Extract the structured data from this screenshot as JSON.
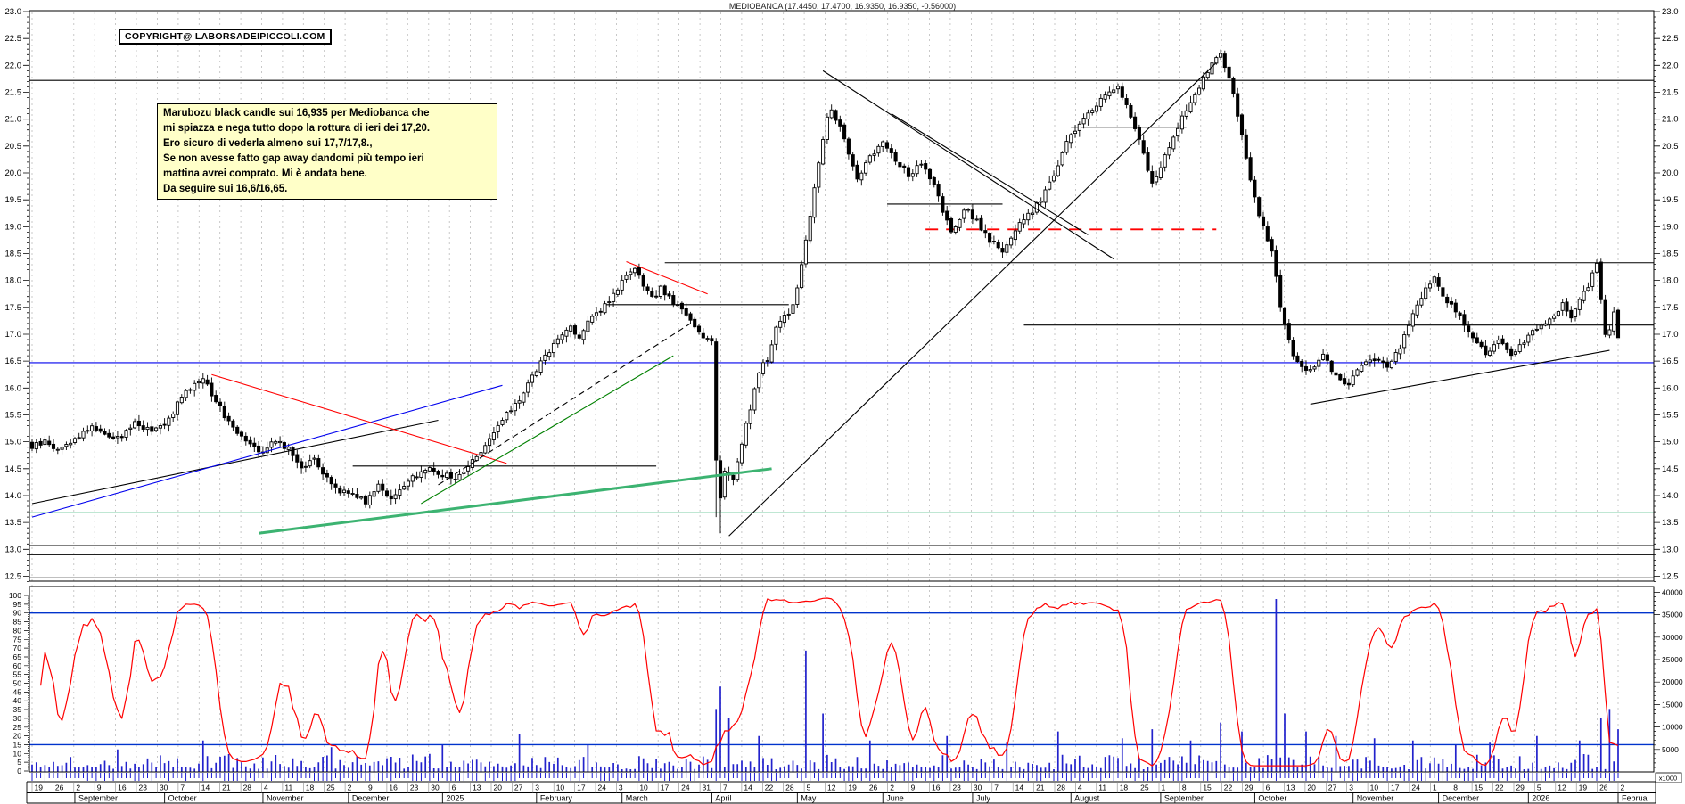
{
  "window": {
    "title": "MEDIOBANCA (17.4450, 17.4700, 16.9350, 16.9350, -0.56000)"
  },
  "copyright_box": {
    "text": "COPYRIGHT@ LABORSADEIPICCOLI.COM"
  },
  "note_box": {
    "text": "Marubozu black candle sui 16,935 per Mediobanca che\nmi spiazza e nega tutto dopo la rottura di ieri dei 17,20.\nEro sicuro di vederla almeno sui 17,7/17,8.,\nSe non avesse fatto gap away dandomi più tempo ieri\nmattina avrei comprato. Mi è andata bene.\nDa seguire sui 16,6/16,65.",
    "background": "#FFFFC8"
  },
  "chart_data": {
    "type": "candlestick",
    "symbol": "MEDIOBANCA",
    "title": "MEDIOBANCA (17.4450, 17.4700, 16.9350, 16.9350, -0.56000)",
    "last_ohlc": {
      "open": 17.445,
      "high": 17.47,
      "low": 16.935,
      "close": 16.935,
      "change": -0.56
    },
    "price_axis": {
      "min_label": 12.5,
      "max_label": 23.0,
      "step": 0.5
    },
    "osc_axis": {
      "min": 0,
      "max": 100,
      "step": 5,
      "thresholds": [
        90,
        15
      ]
    },
    "volume_axis": {
      "labels": [
        40000,
        35000,
        30000,
        25000,
        20000,
        15000,
        10000,
        5000
      ],
      "multiplier_label": "x1000"
    },
    "days_total": 372,
    "week_tick_labels": [
      "19",
      "26",
      "2",
      "9",
      "16",
      "23",
      "30",
      "7",
      "14",
      "21",
      "28",
      "4",
      "11",
      "18",
      "25",
      "2",
      "9",
      "16",
      "23",
      "30",
      "6",
      "13",
      "20",
      "27",
      "3",
      "10",
      "17",
      "24",
      "3",
      "10",
      "17",
      "24",
      "31",
      "7",
      "14",
      "22",
      "28",
      "5",
      "12",
      "19",
      "26",
      "2",
      "9",
      "16",
      "23",
      "30",
      "7",
      "14",
      "21",
      "28",
      "4",
      "11",
      "18",
      "25",
      "1",
      "8",
      "15",
      "22",
      "29",
      "6",
      "13",
      "20",
      "27",
      "3",
      "10",
      "17",
      "24",
      "1",
      "8",
      "15",
      "22",
      "29",
      "5",
      "12",
      "19",
      "26",
      "2"
    ],
    "month_cells": [
      [
        0,
        ""
      ],
      [
        10,
        "September"
      ],
      [
        31,
        "October"
      ],
      [
        54,
        "November"
      ],
      [
        74,
        "December"
      ],
      [
        96,
        "2025"
      ],
      [
        118,
        "February"
      ],
      [
        138,
        "March"
      ],
      [
        159,
        "April"
      ],
      [
        179,
        "May"
      ],
      [
        199,
        "June"
      ],
      [
        220,
        "July"
      ],
      [
        243,
        "August"
      ],
      [
        264,
        "September"
      ],
      [
        286,
        "October"
      ],
      [
        309,
        "November"
      ],
      [
        329,
        "December"
      ],
      [
        350,
        "2026"
      ],
      [
        371,
        "Februa"
      ]
    ],
    "price_anchors": [
      [
        0,
        14.9
      ],
      [
        3,
        15.0
      ],
      [
        6,
        14.85
      ],
      [
        10,
        15.05
      ],
      [
        14,
        15.3
      ],
      [
        17,
        15.15
      ],
      [
        20,
        15.05
      ],
      [
        24,
        15.35
      ],
      [
        28,
        15.2
      ],
      [
        31,
        15.3
      ],
      [
        34,
        15.7
      ],
      [
        38,
        16.1
      ],
      [
        40,
        16.2
      ],
      [
        42,
        15.9
      ],
      [
        45,
        15.5
      ],
      [
        48,
        15.2
      ],
      [
        51,
        15.0
      ],
      [
        54,
        14.8
      ],
      [
        57,
        15.05
      ],
      [
        60,
        14.85
      ],
      [
        63,
        14.55
      ],
      [
        66,
        14.65
      ],
      [
        69,
        14.3
      ],
      [
        72,
        14.1
      ],
      [
        75,
        14.05
      ],
      [
        78,
        13.9
      ],
      [
        81,
        14.2
      ],
      [
        84,
        13.95
      ],
      [
        87,
        14.15
      ],
      [
        90,
        14.4
      ],
      [
        93,
        14.5
      ],
      [
        96,
        14.4
      ],
      [
        99,
        14.3
      ],
      [
        102,
        14.55
      ],
      [
        105,
        14.85
      ],
      [
        108,
        15.15
      ],
      [
        111,
        15.5
      ],
      [
        114,
        15.8
      ],
      [
        117,
        16.2
      ],
      [
        120,
        16.6
      ],
      [
        123,
        16.9
      ],
      [
        126,
        17.15
      ],
      [
        128,
        16.95
      ],
      [
        130,
        17.2
      ],
      [
        133,
        17.45
      ],
      [
        136,
        17.75
      ],
      [
        139,
        18.05
      ],
      [
        141,
        18.2
      ],
      [
        143,
        17.9
      ],
      [
        145,
        17.65
      ],
      [
        147,
        17.85
      ],
      [
        150,
        17.6
      ],
      [
        153,
        17.35
      ],
      [
        155,
        17.15
      ],
      [
        157,
        16.95
      ],
      [
        159,
        16.9
      ],
      [
        160,
        14.7
      ],
      [
        161,
        13.95
      ],
      [
        162,
        14.45
      ],
      [
        164,
        14.3
      ],
      [
        166,
        15.0
      ],
      [
        168,
        15.6
      ],
      [
        170,
        16.3
      ],
      [
        172,
        16.55
      ],
      [
        174,
        17.1
      ],
      [
        176,
        17.35
      ],
      [
        178,
        17.5
      ],
      [
        180,
        18.3
      ],
      [
        182,
        19.2
      ],
      [
        184,
        20.2
      ],
      [
        186,
        21.0
      ],
      [
        187,
        21.2
      ],
      [
        189,
        20.85
      ],
      [
        191,
        20.35
      ],
      [
        193,
        19.9
      ],
      [
        196,
        20.3
      ],
      [
        199,
        20.6
      ],
      [
        202,
        20.25
      ],
      [
        205,
        19.95
      ],
      [
        208,
        20.15
      ],
      [
        211,
        19.75
      ],
      [
        213,
        19.3
      ],
      [
        215,
        18.85
      ],
      [
        218,
        19.35
      ],
      [
        221,
        19.1
      ],
      [
        224,
        18.75
      ],
      [
        227,
        18.55
      ],
      [
        230,
        18.95
      ],
      [
        233,
        19.2
      ],
      [
        236,
        19.5
      ],
      [
        239,
        20.0
      ],
      [
        242,
        20.55
      ],
      [
        245,
        20.9
      ],
      [
        248,
        21.2
      ],
      [
        251,
        21.45
      ],
      [
        254,
        21.6
      ],
      [
        257,
        21.05
      ],
      [
        260,
        20.35
      ],
      [
        262,
        19.8
      ],
      [
        264,
        20.1
      ],
      [
        267,
        20.7
      ],
      [
        270,
        21.2
      ],
      [
        273,
        21.6
      ],
      [
        276,
        22.0
      ],
      [
        278,
        22.25
      ],
      [
        280,
        21.75
      ],
      [
        282,
        21.1
      ],
      [
        284,
        20.25
      ],
      [
        286,
        19.5
      ],
      [
        288,
        19.0
      ],
      [
        290,
        18.55
      ],
      [
        292,
        17.55
      ],
      [
        294,
        16.85
      ],
      [
        296,
        16.45
      ],
      [
        299,
        16.3
      ],
      [
        302,
        16.6
      ],
      [
        305,
        16.2
      ],
      [
        308,
        16.05
      ],
      [
        311,
        16.45
      ],
      [
        314,
        16.55
      ],
      [
        317,
        16.4
      ],
      [
        320,
        16.75
      ],
      [
        323,
        17.35
      ],
      [
        326,
        17.85
      ],
      [
        328,
        18.05
      ],
      [
        331,
        17.6
      ],
      [
        334,
        17.35
      ],
      [
        337,
        16.95
      ],
      [
        340,
        16.65
      ],
      [
        343,
        16.9
      ],
      [
        346,
        16.6
      ],
      [
        349,
        16.85
      ],
      [
        352,
        17.1
      ],
      [
        355,
        17.3
      ],
      [
        358,
        17.55
      ],
      [
        360,
        17.35
      ],
      [
        362,
        17.6
      ],
      [
        364,
        17.9
      ],
      [
        365,
        18.1
      ],
      [
        366,
        18.3
      ],
      [
        367,
        17.6
      ],
      [
        368,
        17.0
      ],
      [
        369,
        17.1
      ],
      [
        370,
        17.4
      ],
      [
        371,
        16.94
      ]
    ],
    "wick_overrides": [
      [
        160,
        13.6
      ],
      [
        161,
        13.3
      ]
    ],
    "volume_spikes": [
      [
        20,
        5000
      ],
      [
        40,
        7000
      ],
      [
        70,
        5500
      ],
      [
        96,
        6000
      ],
      [
        114,
        8500
      ],
      [
        130,
        6000
      ],
      [
        160,
        14000
      ],
      [
        161,
        19000
      ],
      [
        163,
        12000
      ],
      [
        170,
        8000
      ],
      [
        181,
        27000
      ],
      [
        185,
        13000
      ],
      [
        196,
        7000
      ],
      [
        214,
        8000
      ],
      [
        228,
        6500
      ],
      [
        240,
        9000
      ],
      [
        255,
        7500
      ],
      [
        262,
        9500
      ],
      [
        271,
        7000
      ],
      [
        278,
        11000
      ],
      [
        283,
        9000
      ],
      [
        291,
        38500
      ],
      [
        293,
        13000
      ],
      [
        298,
        9000
      ],
      [
        305,
        8000
      ],
      [
        314,
        7500
      ],
      [
        323,
        7000
      ],
      [
        333,
        6000
      ],
      [
        341,
        6500
      ],
      [
        352,
        8000
      ],
      [
        362,
        7000
      ],
      [
        367,
        12000
      ],
      [
        369,
        14000
      ],
      [
        371,
        9500
      ]
    ],
    "levels": [
      {
        "price": 21.72,
        "color": "#000000",
        "from": 0,
        "to": 372
      },
      {
        "price": 16.47,
        "color": "#0000EE",
        "from": 0,
        "to": 372
      },
      {
        "price": 13.68,
        "color": "#00A050",
        "from": 0,
        "to": 372
      },
      {
        "price": 13.07,
        "color": "#000000",
        "from": 0,
        "to": 372
      },
      {
        "price": 12.9,
        "color": "#000000",
        "from": 0,
        "to": 372
      },
      {
        "price": 12.47,
        "color": "#000000",
        "from": 0,
        "to": 372
      },
      {
        "price": 18.33,
        "color": "#000000",
        "from": 148,
        "to": 372
      },
      {
        "price": 17.17,
        "color": "#000000",
        "from": 232,
        "to": 372
      },
      {
        "price": 17.55,
        "color": "#000000",
        "from": 134,
        "to": 177
      },
      {
        "price": 19.42,
        "color": "#000000",
        "from": 200,
        "to": 227
      },
      {
        "price": 20.85,
        "color": "#000000",
        "from": 243,
        "to": 270
      },
      {
        "price": 18.95,
        "color": "#FF0000",
        "from": 209,
        "to": 277,
        "dash": "14,9",
        "width": 1.8
      },
      {
        "price": 14.55,
        "color": "#000000",
        "from": 75,
        "to": 146
      }
    ],
    "trendlines": [
      {
        "from": [
          0,
          13.85
        ],
        "to": [
          95,
          15.4
        ],
        "color": "#000000"
      },
      {
        "from": [
          0,
          13.6
        ],
        "to": [
          110,
          16.05
        ],
        "color": "#0000EE"
      },
      {
        "from": [
          42,
          16.25
        ],
        "to": [
          111,
          14.6
        ],
        "color": "#FF0000"
      },
      {
        "from": [
          53,
          13.3
        ],
        "to": [
          173,
          14.5
        ],
        "color": "#3CB371",
        "width": 3
      },
      {
        "from": [
          91,
          13.85
        ],
        "to": [
          150,
          16.6
        ],
        "color": "#008000"
      },
      {
        "from": [
          95,
          14.2
        ],
        "to": [
          154,
          17.2
        ],
        "color": "#000000",
        "dash": "7,4"
      },
      {
        "from": [
          139,
          18.35
        ],
        "to": [
          158,
          17.75
        ],
        "color": "#FF0000"
      },
      {
        "from": [
          185,
          21.9
        ],
        "to": [
          253,
          18.4
        ],
        "color": "#000000"
      },
      {
        "from": [
          201,
          21.1
        ],
        "to": [
          247,
          18.85
        ],
        "color": "#000000"
      },
      {
        "from": [
          163,
          13.25
        ],
        "to": [
          277,
          22.05
        ],
        "color": "#000000"
      },
      {
        "from": [
          299,
          15.7
        ],
        "to": [
          369,
          16.7
        ],
        "color": "#000000"
      }
    ],
    "colors": {
      "up_candle": "#FFFFFF",
      "down_candle": "#000000",
      "wick": "#000000",
      "volume": "#2222CC",
      "oscillator": "#FF0000",
      "grid": "#BBBBBB",
      "threshold": "#0033CC",
      "axis_tick_strip": "#0000CC"
    }
  }
}
